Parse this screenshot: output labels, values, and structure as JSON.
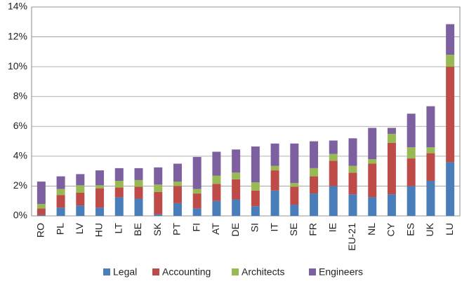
{
  "chart_data": {
    "type": "stacked_bar",
    "categories": [
      "RO",
      "PL",
      "LV",
      "HU",
      "LT",
      "BE",
      "SK",
      "PT",
      "FI",
      "AT",
      "DE",
      "SI",
      "IT",
      "SE",
      "FR",
      "IE",
      "EU-21",
      "NL",
      "CY",
      "ES",
      "UK",
      "LU"
    ],
    "series": [
      {
        "name": "Legal",
        "color": "#4a7ebb",
        "values": [
          0.05,
          0.55,
          0.7,
          0.55,
          1.25,
          1.15,
          0.1,
          0.85,
          0.5,
          1.0,
          1.1,
          0.65,
          1.7,
          0.75,
          1.5,
          2.0,
          1.45,
          1.25,
          1.45,
          2.0,
          2.35,
          3.6
        ]
      },
      {
        "name": "Accounting",
        "color": "#be4b48",
        "values": [
          0.45,
          0.85,
          0.85,
          1.3,
          0.65,
          0.8,
          1.5,
          1.15,
          1.0,
          1.15,
          1.35,
          1.05,
          1.35,
          1.2,
          1.15,
          1.7,
          1.45,
          2.25,
          3.45,
          1.85,
          1.85,
          6.4
        ]
      },
      {
        "name": "Architects",
        "color": "#98b954",
        "values": [
          0.3,
          0.4,
          0.5,
          0.2,
          0.45,
          0.45,
          0.5,
          0.3,
          0.3,
          0.55,
          0.45,
          0.55,
          0.3,
          0.25,
          0.55,
          0.45,
          0.45,
          0.3,
          0.6,
          0.75,
          0.4,
          0.8
        ]
      },
      {
        "name": "Engineers",
        "color": "#7d60a0",
        "values": [
          1.5,
          0.85,
          0.75,
          1.0,
          0.85,
          0.8,
          1.15,
          1.2,
          2.15,
          1.6,
          1.55,
          2.4,
          1.5,
          2.65,
          1.8,
          0.9,
          1.85,
          2.1,
          0.4,
          2.25,
          2.75,
          2.05
        ]
      }
    ],
    "ylim": [
      0,
      14
    ],
    "yticks": [
      {
        "value": 0,
        "label": "0%"
      },
      {
        "value": 2,
        "label": "2%"
      },
      {
        "value": 4,
        "label": "4%"
      },
      {
        "value": 6,
        "label": "6%"
      },
      {
        "value": 8,
        "label": "8%"
      },
      {
        "value": 10,
        "label": "10%"
      },
      {
        "value": 12,
        "label": "12%"
      },
      {
        "value": 14,
        "label": "14%"
      }
    ],
    "grid": true,
    "legend": "bottom"
  }
}
